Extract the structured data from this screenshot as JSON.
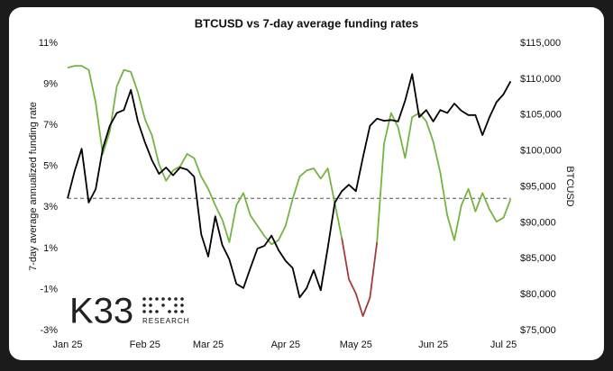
{
  "chart_data": {
    "type": "line",
    "title": "BTCUSD vs 7-day average funding rates",
    "ylabel": "7-day average annualized funding rate",
    "y2label": "BTCUSD",
    "logo": "K33",
    "logo_subtitle": "RESEARCH",
    "categories": [
      "Jan 25",
      null,
      null,
      null,
      null,
      null,
      null,
      null,
      null,
      null,
      null,
      "Feb 25",
      null,
      null,
      null,
      null,
      null,
      null,
      null,
      null,
      "Mar 25",
      null,
      null,
      null,
      null,
      null,
      null,
      null,
      null,
      null,
      null,
      "Apr 25",
      null,
      null,
      null,
      null,
      null,
      null,
      null,
      null,
      null,
      "May 25",
      null,
      null,
      null,
      null,
      null,
      null,
      null,
      null,
      null,
      null,
      "Jun 25",
      null,
      null,
      null,
      null,
      null,
      null,
      null,
      null,
      null,
      "Jul 25",
      null
    ],
    "ylim": [
      -3,
      11
    ],
    "yticks": [
      {
        "value": -3,
        "label": "-3%"
      },
      {
        "value": -1,
        "label": "-1%"
      },
      {
        "value": 1,
        "label": "1%"
      },
      {
        "value": 3,
        "label": "3%"
      },
      {
        "value": 5,
        "label": "5%"
      },
      {
        "value": 7,
        "label": "7%"
      },
      {
        "value": 9,
        "label": "9%"
      },
      {
        "value": 11,
        "label": "11%"
      }
    ],
    "y2lim": [
      75000,
      115000
    ],
    "y2ticks": [
      {
        "value": 75000,
        "label": "$75,000"
      },
      {
        "value": 80000,
        "label": "$80,000"
      },
      {
        "value": 85000,
        "label": "$85,000"
      },
      {
        "value": 90000,
        "label": "$90,000"
      },
      {
        "value": 95000,
        "label": "$95,000"
      },
      {
        "value": 100000,
        "label": "$100,000"
      },
      {
        "value": 105000,
        "label": "$105,000"
      },
      {
        "value": 110000,
        "label": "$110,000"
      },
      {
        "value": 115000,
        "label": "$115,000"
      }
    ],
    "grid": false,
    "reference_line": {
      "value": 93400,
      "axis": "y2"
    },
    "series": [
      {
        "color": "#74b443",
        "negative_color": "#a33b3b",
        "values": [
          9.8,
          9.9,
          9.9,
          9.7,
          8.1,
          5.6,
          6.7,
          8.9,
          9.7,
          9.6,
          8.6,
          7.3,
          6.5,
          5.1,
          4.3,
          4.8,
          5.0,
          5.6,
          5.4,
          4.5,
          3.9,
          3.1,
          2.4,
          1.3,
          3.1,
          3.7,
          2.6,
          2.1,
          1.6,
          1.2,
          1.4,
          2.1,
          3.4,
          4.5,
          4.8,
          4.9,
          4.4,
          4.9,
          3.2,
          1.5,
          -0.5,
          -1.2,
          -2.3,
          -1.4,
          1.3,
          6.1,
          7.6,
          6.9,
          5.4,
          7.4,
          7.6,
          7.2,
          6.2,
          4.7,
          2.6,
          1.4,
          3.1,
          3.9,
          2.8,
          3.7,
          2.9,
          2.3,
          2.5,
          3.4
        ]
      },
      {
        "color": "#000000",
        "axis": "y2",
        "values": [
          93400,
          97200,
          100300,
          92800,
          94700,
          100300,
          103500,
          105300,
          105700,
          108500,
          104100,
          101200,
          98700,
          96800,
          97700,
          96600,
          97700,
          97400,
          96400,
          88400,
          85300,
          90900,
          86900,
          84900,
          81500,
          80900,
          83700,
          86400,
          86800,
          88200,
          86200,
          84700,
          83700,
          79600,
          80900,
          83400,
          80600,
          86500,
          92800,
          94400,
          95300,
          94400,
          99100,
          103500,
          104500,
          104200,
          104300,
          104100,
          107000,
          110700,
          104700,
          105700,
          104100,
          105700,
          105300,
          106600,
          105600,
          105000,
          105000,
          102200,
          104700,
          106800,
          107900,
          109700
        ]
      }
    ]
  }
}
